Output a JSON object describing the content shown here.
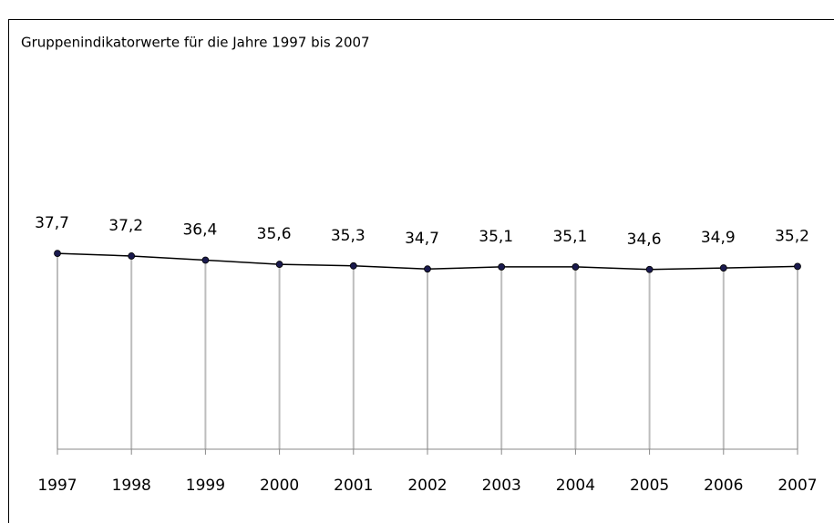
{
  "chart_data": {
    "type": "line",
    "title": "Gruppenindikatorwerte für die Jahre 1997 bis 2007",
    "categories": [
      "1997",
      "1998",
      "1999",
      "2000",
      "2001",
      "2002",
      "2003",
      "2004",
      "2005",
      "2006",
      "2007"
    ],
    "values": [
      37.7,
      37.2,
      36.4,
      35.6,
      35.3,
      34.7,
      35.1,
      35.1,
      34.6,
      34.9,
      35.2
    ],
    "value_labels": [
      "37,7",
      "37,2",
      "36,4",
      "35,6",
      "35,3",
      "34,7",
      "35,1",
      "35,1",
      "34,6",
      "34,9",
      "35,2"
    ],
    "color": "#000000",
    "marker_color": "#1a1a4e",
    "drop_line_color": "#bdbdbd",
    "ylim": [
      0,
      40
    ]
  }
}
